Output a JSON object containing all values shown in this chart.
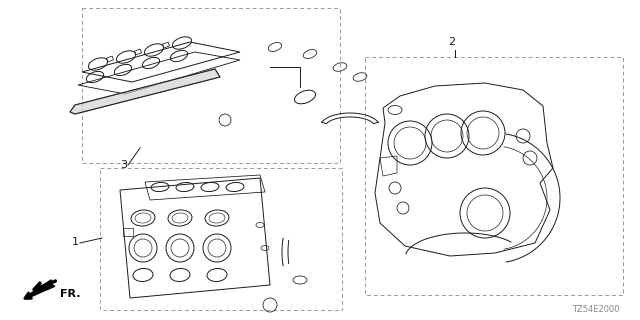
{
  "bg_color": "#ffffff",
  "line_color": "#1a1a1a",
  "dash_color": "#999999",
  "lw": 0.7,
  "code_label": "TZ54E2000",
  "fr_label": "FR.",
  "label1": "1",
  "label2": "2",
  "label3": "3"
}
